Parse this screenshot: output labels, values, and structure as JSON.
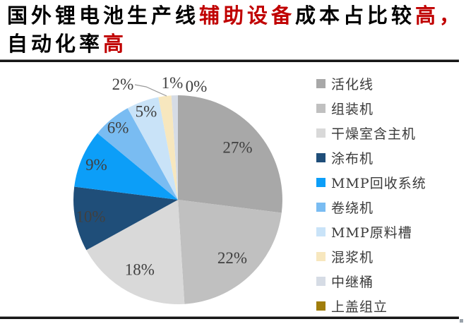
{
  "title": {
    "full_text": "国外锂电池生产线辅助设备成本占比较高，自动化率高",
    "segments": [
      {
        "text": "国外锂电池生产线",
        "emphasis": false
      },
      {
        "text": "辅助设备",
        "emphasis": true
      },
      {
        "text": "成本占比较",
        "emphasis": false
      },
      {
        "text": "高，",
        "emphasis": true
      },
      {
        "text": "自动化率",
        "emphasis": false
      },
      {
        "text": "高",
        "emphasis": true
      }
    ]
  },
  "colors": {
    "background": "#FFFFFF",
    "title_text": "#000000",
    "title_emphasis": "#C00000",
    "percent_label": "#404040",
    "divider": "#161616"
  },
  "chart_data": {
    "type": "pie",
    "unit": "percent",
    "start_angle": "12-oclock",
    "direction": "clockwise",
    "legend_position": "right",
    "slices": [
      {
        "label": "活化线",
        "value": 27,
        "display": "27%",
        "color": "#A8A8A8"
      },
      {
        "label": "组装机",
        "value": 22,
        "display": "22%",
        "color": "#C0C0C0"
      },
      {
        "label": "干燥室含主机",
        "value": 18,
        "display": "18%",
        "color": "#D9D9D9"
      },
      {
        "label": "涂布机",
        "value": 10,
        "display": "10%",
        "color": "#1F4E79"
      },
      {
        "label": "MMP回收系统",
        "value": 9,
        "display": "9%",
        "color": "#0C9EF8"
      },
      {
        "label": "卷绕机",
        "value": 6,
        "display": "6%",
        "color": "#79BCF2"
      },
      {
        "label": "MMP原料槽",
        "value": 5,
        "display": "5%",
        "color": "#C9E3F8"
      },
      {
        "label": "混浆机",
        "value": 2,
        "display": "2%",
        "color": "#F7E7BE"
      },
      {
        "label": "中继桶",
        "value": 1,
        "display": "1%",
        "color": "#D6DCE5"
      },
      {
        "label": "上盖组立",
        "value": 0,
        "display": "0%",
        "color": "#A07D0B"
      }
    ]
  }
}
